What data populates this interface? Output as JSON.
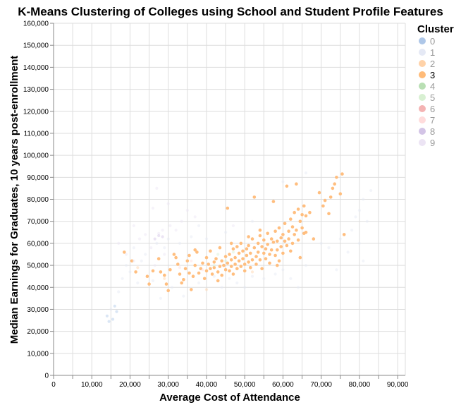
{
  "chart_data": {
    "type": "scatter",
    "title": "K-Means Clustering of Colleges using School and Student Profile Features",
    "xlabel": "Average Cost of Attendance",
    "ylabel": "Median Earnings for Graduates, 10 years post-enrollment",
    "xlim": [
      0,
      92000
    ],
    "ylim": [
      0,
      160000
    ],
    "x_ticks": [
      "0",
      "10,000",
      "20,000",
      "30,000",
      "40,000",
      "50,000",
      "60,000",
      "70,000",
      "80,000",
      "90,000"
    ],
    "y_ticks": [
      "0",
      "10,000",
      "20,000",
      "30,000",
      "40,000",
      "50,000",
      "60,000",
      "70,000",
      "80,000",
      "90,000",
      "100,000",
      "110,000",
      "120,000",
      "130,000",
      "140,000",
      "150,000",
      "160,000"
    ],
    "grid": true,
    "legend": {
      "title": "Cluster",
      "placement": "top-right",
      "selected": "3",
      "items": [
        {
          "label": "0",
          "color": "#aec7e8"
        },
        {
          "label": "1",
          "color": "#e5e9f5"
        },
        {
          "label": "2",
          "color": "#ffd2a8"
        },
        {
          "label": "3",
          "color": "#ffbb78"
        },
        {
          "label": "4",
          "color": "#b9dfb4"
        },
        {
          "label": "5",
          "color": "#d8f0d2"
        },
        {
          "label": "6",
          "color": "#f4b3b3"
        },
        {
          "label": "7",
          "color": "#ffdcdc"
        },
        {
          "label": "8",
          "color": "#d3c4e6"
        },
        {
          "label": "9",
          "color": "#ece4f4"
        }
      ]
    },
    "series": [
      {
        "cluster": "3",
        "highlighted": true,
        "points": [
          [
            18500,
            56000
          ],
          [
            20500,
            52000
          ],
          [
            21500,
            47000
          ],
          [
            24500,
            45000
          ],
          [
            25000,
            41500
          ],
          [
            26000,
            47500
          ],
          [
            27500,
            53000
          ],
          [
            28000,
            47000
          ],
          [
            29000,
            45500
          ],
          [
            29500,
            41500
          ],
          [
            30000,
            38500
          ],
          [
            30500,
            48000
          ],
          [
            31500,
            55000
          ],
          [
            32000,
            53500
          ],
          [
            32500,
            50500
          ],
          [
            33000,
            46000
          ],
          [
            33500,
            42000
          ],
          [
            34000,
            43500
          ],
          [
            34500,
            48500
          ],
          [
            35000,
            52000
          ],
          [
            35500,
            54500
          ],
          [
            35500,
            46500
          ],
          [
            36000,
            39000
          ],
          [
            36500,
            45000
          ],
          [
            37000,
            50000
          ],
          [
            37000,
            57000
          ],
          [
            37500,
            56000
          ],
          [
            38000,
            46500
          ],
          [
            38500,
            48500
          ],
          [
            39000,
            51000
          ],
          [
            39500,
            44000
          ],
          [
            40000,
            47500
          ],
          [
            40000,
            53500
          ],
          [
            40500,
            50500
          ],
          [
            41000,
            48500
          ],
          [
            41000,
            56500
          ],
          [
            41500,
            46000
          ],
          [
            42000,
            49000
          ],
          [
            42000,
            51500
          ],
          [
            42500,
            53000
          ],
          [
            43000,
            47000
          ],
          [
            43000,
            43000
          ],
          [
            43500,
            49500
          ],
          [
            44000,
            52000
          ],
          [
            44000,
            45500
          ],
          [
            44500,
            50000
          ],
          [
            45000,
            48000
          ],
          [
            45000,
            54000
          ],
          [
            45500,
            51000
          ],
          [
            45500,
            76000
          ],
          [
            46000,
            47500
          ],
          [
            46000,
            55000
          ],
          [
            46500,
            52500
          ],
          [
            46500,
            49500
          ],
          [
            47000,
            46000
          ],
          [
            47000,
            57500
          ],
          [
            47500,
            53500
          ],
          [
            47500,
            50500
          ],
          [
            48000,
            48500
          ],
          [
            48000,
            58500
          ],
          [
            48500,
            55500
          ],
          [
            48500,
            52000
          ],
          [
            49000,
            49500
          ],
          [
            49000,
            60000
          ],
          [
            49500,
            56500
          ],
          [
            49500,
            53000
          ],
          [
            50000,
            50500
          ],
          [
            50000,
            47500
          ],
          [
            50500,
            57500
          ],
          [
            50500,
            54500
          ],
          [
            51000,
            51500
          ],
          [
            51000,
            59000
          ],
          [
            51500,
            55500
          ],
          [
            51500,
            49000
          ],
          [
            52000,
            52500
          ],
          [
            52000,
            62000
          ],
          [
            52500,
            58000
          ],
          [
            52500,
            81000
          ],
          [
            53000,
            54000
          ],
          [
            53000,
            50500
          ],
          [
            53500,
            60000
          ],
          [
            53500,
            56000
          ],
          [
            54000,
            52500
          ],
          [
            54000,
            63500
          ],
          [
            54500,
            58500
          ],
          [
            54500,
            48500
          ],
          [
            55000,
            55500
          ],
          [
            55000,
            61500
          ],
          [
            55500,
            57500
          ],
          [
            55500,
            53000
          ],
          [
            56000,
            64500
          ],
          [
            56000,
            59500
          ],
          [
            56500,
            55000
          ],
          [
            56500,
            51000
          ],
          [
            57000,
            62000
          ],
          [
            57000,
            57000
          ],
          [
            57500,
            60500
          ],
          [
            57500,
            79000
          ],
          [
            58000,
            65500
          ],
          [
            58000,
            54500
          ],
          [
            58500,
            61000
          ],
          [
            58500,
            57000
          ],
          [
            59000,
            67000
          ],
          [
            59000,
            52000
          ],
          [
            59500,
            62500
          ],
          [
            59500,
            58500
          ],
          [
            60000,
            64000
          ],
          [
            60000,
            55500
          ],
          [
            60500,
            69000
          ],
          [
            60500,
            61000
          ],
          [
            61000,
            59000
          ],
          [
            61000,
            86000
          ],
          [
            61500,
            65500
          ],
          [
            61500,
            62000
          ],
          [
            62000,
            71000
          ],
          [
            62000,
            56500
          ],
          [
            62500,
            67500
          ],
          [
            62500,
            60000
          ],
          [
            63000,
            74000
          ],
          [
            63000,
            64000
          ],
          [
            63500,
            66000
          ],
          [
            63500,
            87000
          ],
          [
            64000,
            75500
          ],
          [
            64000,
            61500
          ],
          [
            64500,
            70000
          ],
          [
            64500,
            53500
          ],
          [
            65000,
            73000
          ],
          [
            65000,
            67000
          ],
          [
            65500,
            77000
          ],
          [
            65500,
            64500
          ],
          [
            66000,
            65000
          ],
          [
            66000,
            72500
          ],
          [
            68000,
            62000
          ],
          [
            69500,
            83000
          ],
          [
            70500,
            77000
          ],
          [
            71000,
            79500
          ],
          [
            72000,
            73500
          ],
          [
            72500,
            81000
          ],
          [
            73000,
            85000
          ],
          [
            73500,
            87000
          ],
          [
            74000,
            90000
          ],
          [
            75000,
            82500
          ],
          [
            75500,
            91500
          ],
          [
            76000,
            64000
          ],
          [
            54000,
            66000
          ],
          [
            46500,
            60000
          ],
          [
            43500,
            58000
          ],
          [
            58500,
            50000
          ],
          [
            51000,
            63000
          ],
          [
            67000,
            74000
          ]
        ]
      },
      {
        "cluster": "1",
        "highlighted": false,
        "points": [
          [
            15000,
            30000
          ],
          [
            17000,
            38000
          ],
          [
            18000,
            44000
          ],
          [
            19000,
            50000
          ],
          [
            20000,
            47000
          ],
          [
            21000,
            58000
          ],
          [
            22000,
            42000
          ],
          [
            23000,
            52000
          ],
          [
            24000,
            55000
          ],
          [
            26000,
            43000
          ],
          [
            27000,
            60000
          ],
          [
            28000,
            35000
          ],
          [
            29000,
            58000
          ],
          [
            30000,
            62000
          ],
          [
            31000,
            40000
          ],
          [
            33000,
            60000
          ],
          [
            34000,
            36000
          ],
          [
            36000,
            63000
          ],
          [
            38000,
            42000
          ],
          [
            40000,
            62000
          ],
          [
            42000,
            45000
          ],
          [
            44000,
            40000
          ],
          [
            46000,
            44000
          ],
          [
            48000,
            42000
          ],
          [
            50000,
            40000
          ],
          [
            52000,
            45000
          ],
          [
            55000,
            44000
          ],
          [
            58000,
            46000
          ],
          [
            60000,
            48000
          ],
          [
            62000,
            44000
          ],
          [
            64000,
            40000
          ],
          [
            66000,
            50000
          ],
          [
            70000,
            60000
          ],
          [
            72000,
            58000
          ],
          [
            75000,
            62000
          ],
          [
            78000,
            66000
          ],
          [
            79000,
            72000
          ],
          [
            80000,
            75000
          ],
          [
            81000,
            80000
          ],
          [
            82000,
            70000
          ],
          [
            80000,
            60000
          ],
          [
            77000,
            56000
          ],
          [
            83000,
            84000
          ],
          [
            81000,
            52000
          ],
          [
            74000,
            48000
          ],
          [
            45000,
            65000
          ],
          [
            38000,
            68000
          ],
          [
            52000,
            70000
          ],
          [
            60000,
            88000
          ],
          [
            66000,
            92000
          ]
        ]
      },
      {
        "cluster": "9",
        "highlighted": false,
        "points": [
          [
            17000,
            60000
          ],
          [
            19000,
            55000
          ],
          [
            21000,
            52000
          ],
          [
            22500,
            62000
          ],
          [
            24000,
            64000
          ],
          [
            25500,
            58000
          ],
          [
            26500,
            50000
          ],
          [
            27500,
            64500
          ],
          [
            28500,
            66000
          ],
          [
            29000,
            55000
          ],
          [
            30500,
            68000
          ],
          [
            32000,
            66000
          ],
          [
            33500,
            70000
          ],
          [
            26000,
            76000
          ],
          [
            21000,
            68000
          ],
          [
            35000,
            75000
          ],
          [
            30000,
            78000
          ],
          [
            37000,
            72000
          ],
          [
            27000,
            85000
          ],
          [
            47000,
            68000
          ]
        ]
      },
      {
        "cluster": "0",
        "highlighted": false,
        "points": [
          [
            14500,
            24500
          ],
          [
            15500,
            25500
          ],
          [
            16000,
            31500
          ],
          [
            14000,
            27000
          ],
          [
            16500,
            29000
          ]
        ]
      },
      {
        "cluster": "8",
        "highlighted": false,
        "points": [
          [
            27500,
            63500
          ],
          [
            28500,
            63000
          ],
          [
            26500,
            62000
          ]
        ]
      },
      {
        "cluster": "5",
        "highlighted": false,
        "points": [
          [
            43000,
            55000
          ],
          [
            45000,
            52000
          ],
          [
            42000,
            50000
          ],
          [
            47000,
            56000
          ]
        ]
      },
      {
        "cluster": "7",
        "highlighted": false,
        "points": [
          [
            36000,
            52000
          ],
          [
            39000,
            48000
          ],
          [
            33000,
            49000
          ]
        ]
      },
      {
        "cluster": "2",
        "highlighted": false,
        "points": [
          [
            22000,
            49000
          ],
          [
            29000,
            44000
          ],
          [
            40000,
            39000
          ],
          [
            52000,
            47000
          ]
        ]
      }
    ]
  }
}
